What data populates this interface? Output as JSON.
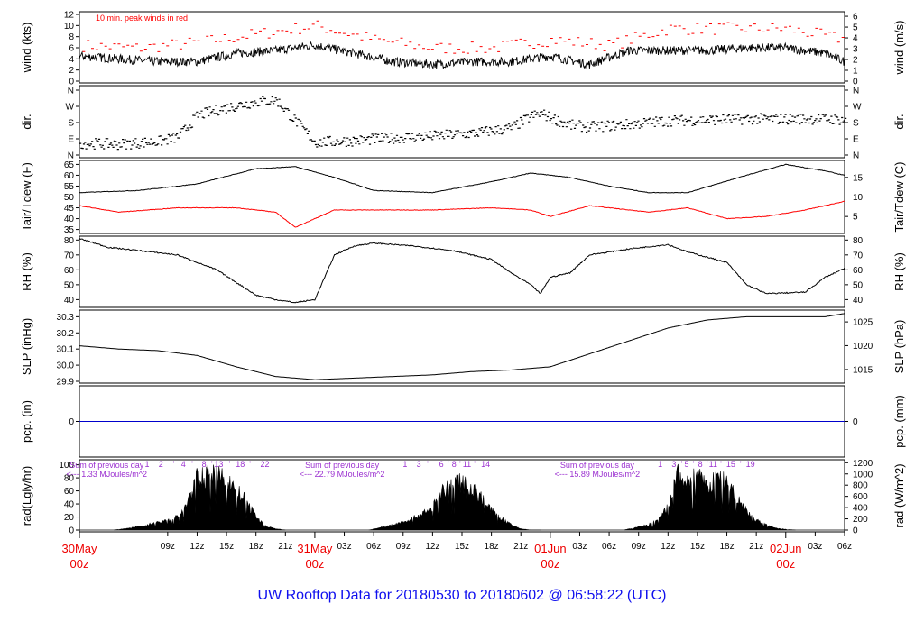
{
  "title": "UW Rooftop Data for 20180530  to  20180602 @ 06:58:22  (UTC)",
  "colors": {
    "title": "#1010ee",
    "date_labels": "#ee0000",
    "peak": "#ff0000",
    "tdew": "#ff0000",
    "pcp_line": "#0000cc",
    "sum_text": "#9b30d0",
    "hour_marks": "#9b30d0",
    "data": "#000000"
  },
  "chart_data": [
    {
      "id": "wind",
      "type": "line",
      "ylabel_left": "wind (kts)",
      "ylabel_right": "wind (m/s)",
      "ylim": [
        0,
        12
      ],
      "left_ticks": [
        "0",
        "2",
        "4",
        "6",
        "8",
        "10",
        "12"
      ],
      "right_ticks": [
        "0",
        "1",
        "2",
        "3",
        "4",
        "5",
        "6"
      ],
      "right_tick_values_in_left_units": [
        0,
        1.944,
        3.888,
        5.832,
        7.776,
        9.72,
        11.664
      ],
      "annotation": "10 min. peak winds in red",
      "series": [
        {
          "name": "10 min. peak winds",
          "color": "#ff0000",
          "style": "dashes",
          "x": [
            0,
            6,
            12,
            18,
            24,
            30,
            36,
            42,
            48,
            54,
            60,
            66,
            72,
            78
          ],
          "y": [
            6,
            5.5,
            6.5,
            8,
            9.5,
            7,
            5.5,
            5.5,
            7,
            6,
            9,
            9,
            9,
            7
          ]
        },
        {
          "name": "wind",
          "color": "#000000",
          "x": [
            0,
            4,
            8,
            12,
            16,
            20,
            24,
            28,
            32,
            36,
            40,
            44,
            48,
            52,
            56,
            60,
            64,
            68,
            72,
            76,
            78
          ],
          "y": [
            4.5,
            4,
            3.5,
            3.5,
            5,
            5.5,
            6.5,
            5,
            3.5,
            3,
            3.5,
            3.5,
            4.5,
            3,
            5.5,
            5.5,
            5.5,
            6,
            6,
            5,
            3.5
          ]
        }
      ]
    },
    {
      "id": "dir",
      "type": "scatter",
      "ylabel_left": "dir.",
      "ylabel_right": "dir.",
      "ylim": [
        0,
        360
      ],
      "left_ticks": [
        "N",
        "E",
        "S",
        "W",
        "N"
      ],
      "right_ticks": [
        "N",
        "E",
        "S",
        "W",
        "N"
      ],
      "series": [
        {
          "name": "direction",
          "color": "#000000",
          "x": [
            0,
            4,
            8,
            10,
            12,
            14,
            16,
            18,
            20,
            24,
            28,
            32,
            36,
            40,
            44,
            46,
            47,
            48,
            50,
            52,
            56,
            60,
            64,
            68,
            72,
            76,
            78
          ],
          "y": [
            65,
            60,
            75,
            100,
            220,
            250,
            275,
            295,
            305,
            70,
            80,
            95,
            105,
            120,
            150,
            215,
            230,
            205,
            165,
            155,
            170,
            190,
            195,
            200,
            200,
            200,
            195
          ]
        }
      ]
    },
    {
      "id": "temp",
      "type": "line",
      "ylabel_left": "Tair/Tdew (F)",
      "ylabel_right": "Tair/Tdew (C)",
      "ylim": [
        34,
        66
      ],
      "left_ticks": [
        "35",
        "40",
        "45",
        "50",
        "55",
        "60",
        "65"
      ],
      "left_tick_values": [
        35,
        40,
        45,
        50,
        55,
        60,
        65
      ],
      "right_ticks": [
        "5",
        "10",
        "15"
      ],
      "right_tick_values_in_left_units": [
        41,
        50,
        59
      ],
      "series": [
        {
          "name": "Tair",
          "color": "#000000",
          "x": [
            0,
            6,
            12,
            18,
            22,
            26,
            30,
            36,
            42,
            46,
            50,
            54,
            58,
            62,
            68,
            72,
            76,
            78
          ],
          "y": [
            52,
            53,
            56,
            63,
            64,
            59,
            53,
            52,
            57,
            61,
            59,
            55,
            52,
            52,
            60,
            65,
            62,
            60
          ]
        },
        {
          "name": "Tdew",
          "color": "#ff0000",
          "x": [
            0,
            4,
            10,
            16,
            20,
            22,
            26,
            30,
            36,
            42,
            46,
            48,
            52,
            58,
            62,
            66,
            70,
            74,
            78
          ],
          "y": [
            46,
            43,
            45,
            45,
            43,
            36,
            44,
            44,
            44,
            45,
            44,
            41,
            46,
            43,
            45,
            40,
            41,
            44,
            48
          ]
        }
      ]
    },
    {
      "id": "rh",
      "type": "line",
      "ylabel_left": "RH (%)",
      "ylabel_right": "RH (%)",
      "ylim": [
        36,
        82
      ],
      "left_ticks": [
        "40",
        "50",
        "60",
        "70",
        "80"
      ],
      "left_tick_values": [
        40,
        50,
        60,
        70,
        80
      ],
      "right_ticks": [
        "40",
        "50",
        "60",
        "70",
        "80"
      ],
      "right_tick_values_in_left_units": [
        40,
        50,
        60,
        70,
        80
      ],
      "series": [
        {
          "name": "RH",
          "color": "#000000",
          "x": [
            0,
            3,
            6,
            10,
            14,
            18,
            20,
            22,
            24,
            26,
            28,
            30,
            34,
            38,
            42,
            44,
            46,
            47,
            48,
            50,
            52,
            56,
            60,
            62,
            66,
            68,
            70,
            74,
            76,
            78
          ],
          "y": [
            81,
            75,
            73,
            70,
            60,
            43,
            40,
            38,
            40,
            70,
            76,
            78,
            76,
            73,
            67,
            58,
            50,
            44,
            55,
            58,
            70,
            74,
            77,
            72,
            65,
            50,
            44,
            45,
            55,
            61
          ]
        }
      ]
    },
    {
      "id": "slp",
      "type": "line",
      "ylabel_left": "SLP (inHg)",
      "ylabel_right": "SLP (hPa)",
      "ylim": [
        29.9,
        30.33
      ],
      "left_ticks": [
        "29.9",
        "30.0",
        "30.1",
        "30.2",
        "30.3"
      ],
      "left_tick_values": [
        29.9,
        30.0,
        30.1,
        30.2,
        30.3
      ],
      "right_ticks": [
        "1015",
        "1020",
        "1025"
      ],
      "right_tick_values_in_left_units": [
        29.973,
        30.121,
        30.268
      ],
      "series": [
        {
          "name": "SLP",
          "color": "#000000",
          "x": [
            0,
            4,
            8,
            12,
            16,
            20,
            24,
            28,
            32,
            36,
            40,
            44,
            48,
            52,
            56,
            60,
            64,
            68,
            72,
            76,
            78
          ],
          "y": [
            30.12,
            30.1,
            30.09,
            30.06,
            29.99,
            29.93,
            29.91,
            29.92,
            29.93,
            29.94,
            29.96,
            29.97,
            29.99,
            30.07,
            30.15,
            30.23,
            30.28,
            30.3,
            30.3,
            30.3,
            30.32
          ]
        }
      ]
    },
    {
      "id": "pcp",
      "type": "line",
      "ylabel_left": "pcp. (in)",
      "ylabel_right": "pcp. (mm)",
      "ylim": [
        -1,
        1
      ],
      "left_ticks": [
        "0"
      ],
      "left_tick_values": [
        0
      ],
      "right_ticks": [
        "0"
      ],
      "right_tick_values_in_left_units": [
        0
      ],
      "series": [
        {
          "name": "precip",
          "color": "#0000cc",
          "x": [
            0,
            78
          ],
          "y": [
            0,
            0
          ]
        }
      ]
    },
    {
      "id": "rad",
      "type": "area",
      "ylabel_left": "rad(Lgly/hr)",
      "ylabel_right": "rad (W/m^2)",
      "ylim": [
        0,
        105
      ],
      "left_ticks": [
        "0",
        "20",
        "40",
        "60",
        "80",
        "100"
      ],
      "left_tick_values": [
        0,
        20,
        40,
        60,
        80,
        100
      ],
      "right_ticks": [
        "0",
        "200",
        "400",
        "600",
        "800",
        "1000",
        "1200"
      ],
      "right_tick_values_in_left_units": [
        0,
        17.2,
        34.4,
        51.6,
        68.8,
        86.0,
        103.2
      ],
      "annotations": [
        {
          "x": -2,
          "line1": "Sum of previous day",
          "line2": "<--- 1.33 MJoules/m^2"
        },
        {
          "x": 22,
          "line1": "Sum of previous day",
          "line2": "<--- 22.79 MJoules/m^2"
        },
        {
          "x": 48,
          "line1": "Sum of previous day",
          "line2": "<--- 15.89 MJoules/m^2"
        }
      ],
      "hour_labels": [
        {
          "x": 6.9,
          "text": "1"
        },
        {
          "x": 8.3,
          "text": "2"
        },
        {
          "x": 9.6,
          "text": "'"
        },
        {
          "x": 10.6,
          "text": "4"
        },
        {
          "x": 11.5,
          "text": "'"
        },
        {
          "x": 12.2,
          "text": "'"
        },
        {
          "x": 12.7,
          "text": "8"
        },
        {
          "x": 13.5,
          "text": "'"
        },
        {
          "x": 14.2,
          "text": "13"
        },
        {
          "x": 15.3,
          "text": "'"
        },
        {
          "x": 16.4,
          "text": "18"
        },
        {
          "x": 17.4,
          "text": "'"
        },
        {
          "x": 18.9,
          "text": "22"
        },
        {
          "x": 33.2,
          "text": "1"
        },
        {
          "x": 34.6,
          "text": "3"
        },
        {
          "x": 35.5,
          "text": "'"
        },
        {
          "x": 36.9,
          "text": "6"
        },
        {
          "x": 37.6,
          "text": "'"
        },
        {
          "x": 38.2,
          "text": "8"
        },
        {
          "x": 38.8,
          "text": "'"
        },
        {
          "x": 39.5,
          "text": "11"
        },
        {
          "x": 40.3,
          "text": "'"
        },
        {
          "x": 41.4,
          "text": "14"
        },
        {
          "x": 59.2,
          "text": "1"
        },
        {
          "x": 60.6,
          "text": "3"
        },
        {
          "x": 61.4,
          "text": "'"
        },
        {
          "x": 61.9,
          "text": "5"
        },
        {
          "x": 62.6,
          "text": "'"
        },
        {
          "x": 63.3,
          "text": "8"
        },
        {
          "x": 64.0,
          "text": "'"
        },
        {
          "x": 64.6,
          "text": "11"
        },
        {
          "x": 65.4,
          "text": "'"
        },
        {
          "x": 66.4,
          "text": "15"
        },
        {
          "x": 67.4,
          "text": "'"
        },
        {
          "x": 68.4,
          "text": "19"
        }
      ],
      "series": [
        {
          "name": "solar radiation",
          "color": "#000000",
          "x": [
            3.5,
            6,
            8,
            10,
            11,
            12,
            13,
            14,
            15,
            16,
            17,
            18,
            19,
            20,
            21,
            29.5,
            32,
            34,
            36,
            37,
            38,
            39,
            40,
            41,
            42,
            43,
            44,
            45,
            46,
            47,
            55.5,
            58,
            59,
            60,
            61,
            62,
            63,
            64,
            65,
            66,
            67,
            68,
            69,
            70,
            71,
            72,
            73
          ],
          "y": [
            0,
            5,
            12,
            20,
            40,
            80,
            85,
            83,
            78,
            62,
            45,
            20,
            6,
            2,
            0,
            0,
            8,
            18,
            35,
            58,
            70,
            75,
            65,
            50,
            30,
            18,
            8,
            2,
            0,
            0,
            0,
            8,
            16,
            35,
            88,
            70,
            92,
            60,
            85,
            70,
            50,
            30,
            15,
            8,
            3,
            1,
            0
          ]
        }
      ]
    }
  ],
  "x_axis": {
    "start_hour": 0,
    "end_hour": 78,
    "ticks": [
      {
        "h": 9,
        "label": "09z"
      },
      {
        "h": 12,
        "label": "12z"
      },
      {
        "h": 15,
        "label": "15z"
      },
      {
        "h": 18,
        "label": "18z"
      },
      {
        "h": 21,
        "label": "21z"
      },
      {
        "h": 27,
        "label": "03z"
      },
      {
        "h": 30,
        "label": "06z"
      },
      {
        "h": 33,
        "label": "09z"
      },
      {
        "h": 36,
        "label": "12z"
      },
      {
        "h": 39,
        "label": "15z"
      },
      {
        "h": 42,
        "label": "18z"
      },
      {
        "h": 45,
        "label": "21z"
      },
      {
        "h": 51,
        "label": "03z"
      },
      {
        "h": 54,
        "label": "06z"
      },
      {
        "h": 57,
        "label": "09z"
      },
      {
        "h": 60,
        "label": "12z"
      },
      {
        "h": 63,
        "label": "15z"
      },
      {
        "h": 66,
        "label": "18z"
      },
      {
        "h": 69,
        "label": "21z"
      },
      {
        "h": 75,
        "label": "03z"
      },
      {
        "h": 78,
        "label": "06z"
      }
    ],
    "date_labels": [
      {
        "h": 0,
        "line1": "30May",
        "line2": "00z"
      },
      {
        "h": 24,
        "line1": "31May",
        "line2": "00z"
      },
      {
        "h": 48,
        "line1": "01Jun",
        "line2": "00z"
      },
      {
        "h": 72,
        "line1": "02Jun",
        "line2": "00z"
      }
    ]
  }
}
